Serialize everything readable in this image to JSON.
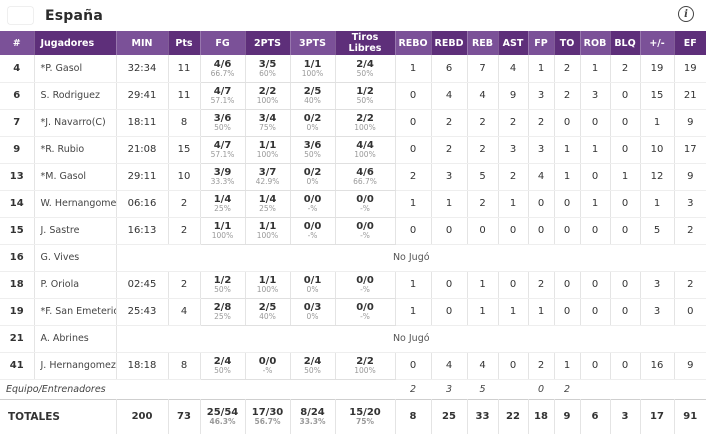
{
  "header": {
    "team": "España",
    "flag_icon": "spain-flag",
    "info_icon": "i"
  },
  "colors": {
    "header_purple_dark": "#5e2f7a",
    "header_purple_light": "#7b5198",
    "flag_red": "#c60b1e",
    "flag_yellow": "#ffc400"
  },
  "table": {
    "columns": [
      "#",
      "Jugadores",
      "MIN",
      "Pts",
      "FG",
      "2PTS",
      "3PTS",
      "Tiros Libres",
      "REBO",
      "REBD",
      "REB",
      "AST",
      "FP",
      "TO",
      "ROB",
      "BLQ",
      "+/-",
      "EF"
    ],
    "dnp_label": "No Jugó",
    "players": [
      {
        "num": "4",
        "name": "*P. Gasol",
        "min": "32:34",
        "pts": "11",
        "fg": [
          "4/6",
          "66.7%"
        ],
        "p2": [
          "3/5",
          "60%"
        ],
        "p3": [
          "1/1",
          "100%"
        ],
        "ft": [
          "2/4",
          "50%"
        ],
        "stats": [
          "1",
          "6",
          "7",
          "4",
          "1",
          "2",
          "1",
          "2",
          "19",
          "19"
        ]
      },
      {
        "num": "6",
        "name": "S. Rodriguez",
        "min": "29:41",
        "pts": "11",
        "fg": [
          "4/7",
          "57.1%"
        ],
        "p2": [
          "2/2",
          "100%"
        ],
        "p3": [
          "2/5",
          "40%"
        ],
        "ft": [
          "1/2",
          "50%"
        ],
        "stats": [
          "0",
          "4",
          "4",
          "9",
          "3",
          "2",
          "3",
          "0",
          "15",
          "21"
        ]
      },
      {
        "num": "7",
        "name": "*J. Navarro(C)",
        "min": "18:11",
        "pts": "8",
        "fg": [
          "3/6",
          "50%"
        ],
        "p2": [
          "3/4",
          "75%"
        ],
        "p3": [
          "0/2",
          "0%"
        ],
        "ft": [
          "2/2",
          "100%"
        ],
        "stats": [
          "0",
          "2",
          "2",
          "2",
          "2",
          "0",
          "0",
          "0",
          "1",
          "9"
        ]
      },
      {
        "num": "9",
        "name": "*R. Rubio",
        "min": "21:08",
        "pts": "15",
        "fg": [
          "4/7",
          "57.1%"
        ],
        "p2": [
          "1/1",
          "100%"
        ],
        "p3": [
          "3/6",
          "50%"
        ],
        "ft": [
          "4/4",
          "100%"
        ],
        "stats": [
          "0",
          "2",
          "2",
          "3",
          "3",
          "1",
          "1",
          "0",
          "10",
          "17"
        ]
      },
      {
        "num": "13",
        "name": "*M. Gasol",
        "min": "29:11",
        "pts": "10",
        "fg": [
          "3/9",
          "33.3%"
        ],
        "p2": [
          "3/7",
          "42.9%"
        ],
        "p3": [
          "0/2",
          "0%"
        ],
        "ft": [
          "4/6",
          "66.7%"
        ],
        "stats": [
          "2",
          "3",
          "5",
          "2",
          "4",
          "1",
          "0",
          "1",
          "12",
          "9"
        ]
      },
      {
        "num": "14",
        "name": "W. Hernangomez",
        "min": "06:16",
        "pts": "2",
        "fg": [
          "1/4",
          "25%"
        ],
        "p2": [
          "1/4",
          "25%"
        ],
        "p3": [
          "0/0",
          "-%"
        ],
        "ft": [
          "0/0",
          "-%"
        ],
        "stats": [
          "1",
          "1",
          "2",
          "1",
          "0",
          "0",
          "1",
          "0",
          "1",
          "3"
        ]
      },
      {
        "num": "15",
        "name": "J. Sastre",
        "min": "16:13",
        "pts": "2",
        "fg": [
          "1/1",
          "100%"
        ],
        "p2": [
          "1/1",
          "100%"
        ],
        "p3": [
          "0/0",
          "-%"
        ],
        "ft": [
          "0/0",
          "-%"
        ],
        "stats": [
          "0",
          "0",
          "0",
          "0",
          "0",
          "0",
          "0",
          "0",
          "5",
          "2"
        ]
      },
      {
        "num": "16",
        "name": "G. Vives",
        "dnp": true
      },
      {
        "num": "18",
        "name": "P. Oriola",
        "min": "02:45",
        "pts": "2",
        "fg": [
          "1/2",
          "50%"
        ],
        "p2": [
          "1/1",
          "100%"
        ],
        "p3": [
          "0/1",
          "0%"
        ],
        "ft": [
          "0/0",
          "-%"
        ],
        "stats": [
          "1",
          "0",
          "1",
          "0",
          "2",
          "0",
          "0",
          "0",
          "3",
          "2"
        ]
      },
      {
        "num": "19",
        "name": "*F. San Emeterio",
        "min": "25:43",
        "pts": "4",
        "fg": [
          "2/8",
          "25%"
        ],
        "p2": [
          "2/5",
          "40%"
        ],
        "p3": [
          "0/3",
          "0%"
        ],
        "ft": [
          "0/0",
          "-%"
        ],
        "stats": [
          "1",
          "0",
          "1",
          "1",
          "1",
          "0",
          "0",
          "0",
          "3",
          "0"
        ]
      },
      {
        "num": "21",
        "name": "A. Abrines",
        "dnp": true
      },
      {
        "num": "41",
        "name": "J. Hernangomez",
        "min": "18:18",
        "pts": "8",
        "fg": [
          "2/4",
          "50%"
        ],
        "p2": [
          "0/0",
          "-%"
        ],
        "p3": [
          "2/4",
          "50%"
        ],
        "ft": [
          "2/2",
          "100%"
        ],
        "stats": [
          "0",
          "4",
          "4",
          "0",
          "2",
          "1",
          "0",
          "0",
          "16",
          "9"
        ]
      }
    ],
    "team_row": {
      "label": "Equipo/Entrenadores",
      "stats": [
        "2",
        "3",
        "5",
        "",
        "0",
        "2",
        "",
        "",
        "",
        ""
      ]
    },
    "totals": {
      "label": "TOTALES",
      "min": "200",
      "pts": "73",
      "fg": [
        "25/54",
        "46.3%"
      ],
      "p2": [
        "17/30",
        "56.7%"
      ],
      "p3": [
        "8/24",
        "33.3%"
      ],
      "ft": [
        "15/20",
        "75%"
      ],
      "stats": [
        "8",
        "25",
        "33",
        "22",
        "18",
        "9",
        "6",
        "3",
        "17",
        "91"
      ]
    }
  }
}
